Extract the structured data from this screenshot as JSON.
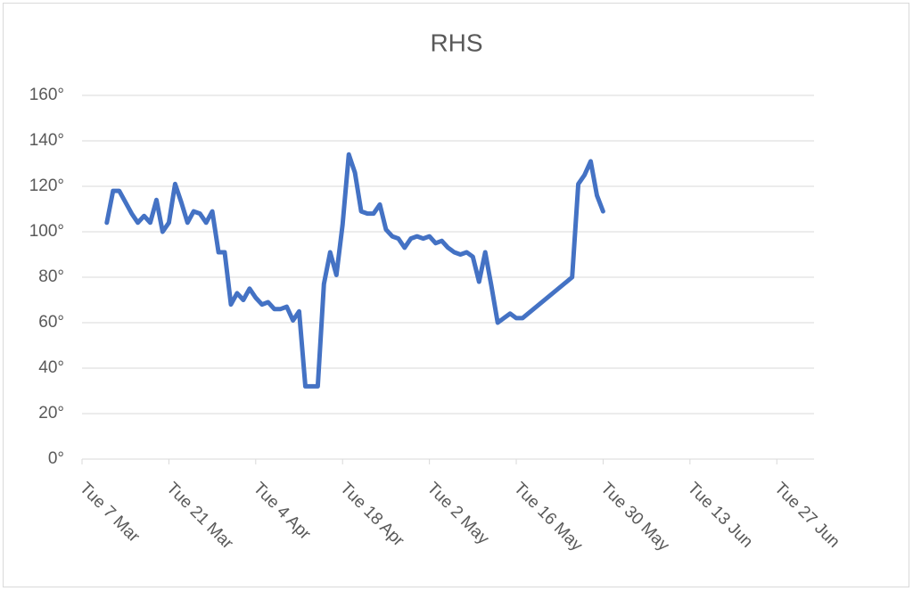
{
  "chart_data": {
    "type": "line",
    "title": "RHS",
    "x": [
      "11 Mar",
      "12 Mar",
      "13 Mar",
      "14 Mar",
      "15 Mar",
      "16 Mar",
      "17 Mar",
      "18 Mar",
      "19 Mar",
      "20 Mar",
      "21 Mar",
      "22 Mar",
      "23 Mar",
      "24 Mar",
      "25 Mar",
      "26 Mar",
      "27 Mar",
      "28 Mar",
      "29 Mar",
      "30 Mar",
      "31 Mar",
      "1 Apr",
      "2 Apr",
      "3 Apr",
      "4 Apr",
      "5 Apr",
      "6 Apr",
      "7 Apr",
      "8 Apr",
      "9 Apr",
      "10 Apr",
      "11 Apr",
      "12 Apr",
      "13 Apr",
      "14 Apr",
      "15 Apr",
      "16 Apr",
      "17 Apr",
      "18 Apr",
      "19 Apr",
      "20 Apr",
      "21 Apr",
      "22 Apr",
      "23 Apr",
      "24 Apr",
      "25 Apr",
      "26 Apr",
      "27 Apr",
      "28 Apr",
      "29 Apr",
      "30 Apr",
      "1 May",
      "2 May",
      "3 May",
      "4 May",
      "5 May",
      "6 May",
      "7 May",
      "8 May",
      "9 May",
      "10 May",
      "11 May",
      "12 May",
      "13 May",
      "14 May",
      "15 May",
      "16 May",
      "17 May",
      "25 May",
      "26 May",
      "27 May",
      "28 May",
      "29 May",
      "30 May"
    ],
    "series": [
      {
        "color": "#4472c4",
        "values": [
          104,
          118,
          118,
          113,
          108,
          104,
          107,
          104,
          114,
          100,
          104,
          121,
          113,
          104,
          109,
          108,
          104,
          109,
          91,
          91,
          68,
          73,
          70,
          75,
          71,
          68,
          69,
          66,
          66,
          67,
          61,
          65,
          32,
          32,
          32,
          77,
          91,
          81,
          103,
          134,
          126,
          109,
          108,
          108,
          112,
          101,
          98,
          97,
          93,
          97,
          98,
          97,
          98,
          95,
          96,
          93,
          91,
          90,
          91,
          89,
          78,
          91,
          76,
          60,
          62,
          64,
          62,
          62,
          80,
          121,
          125,
          131,
          116,
          109
        ]
      }
    ],
    "xlim": [
      "Tue 7 Mar",
      "Mon 3 Jul"
    ],
    "xticks": [
      "Tue 7 Mar",
      "Tue 21 Mar",
      "Tue 4 Apr",
      "Tue 18 Apr",
      "Tue 2 May",
      "Tue 16 May",
      "Tue 30 May",
      "Tue 13 Jun",
      "Tue 27 Jun"
    ],
    "ylim": [
      0,
      160
    ],
    "yticks": [
      {
        "value": 0,
        "label": "0°"
      },
      {
        "value": 20,
        "label": "20°"
      },
      {
        "value": 40,
        "label": "40°"
      },
      {
        "value": 60,
        "label": "60°"
      },
      {
        "value": 80,
        "label": "80°"
      },
      {
        "value": 100,
        "label": "100°"
      },
      {
        "value": 120,
        "label": "120°"
      },
      {
        "value": 140,
        "label": "140°"
      },
      {
        "value": 160,
        "label": "160°"
      }
    ],
    "grid": true
  }
}
